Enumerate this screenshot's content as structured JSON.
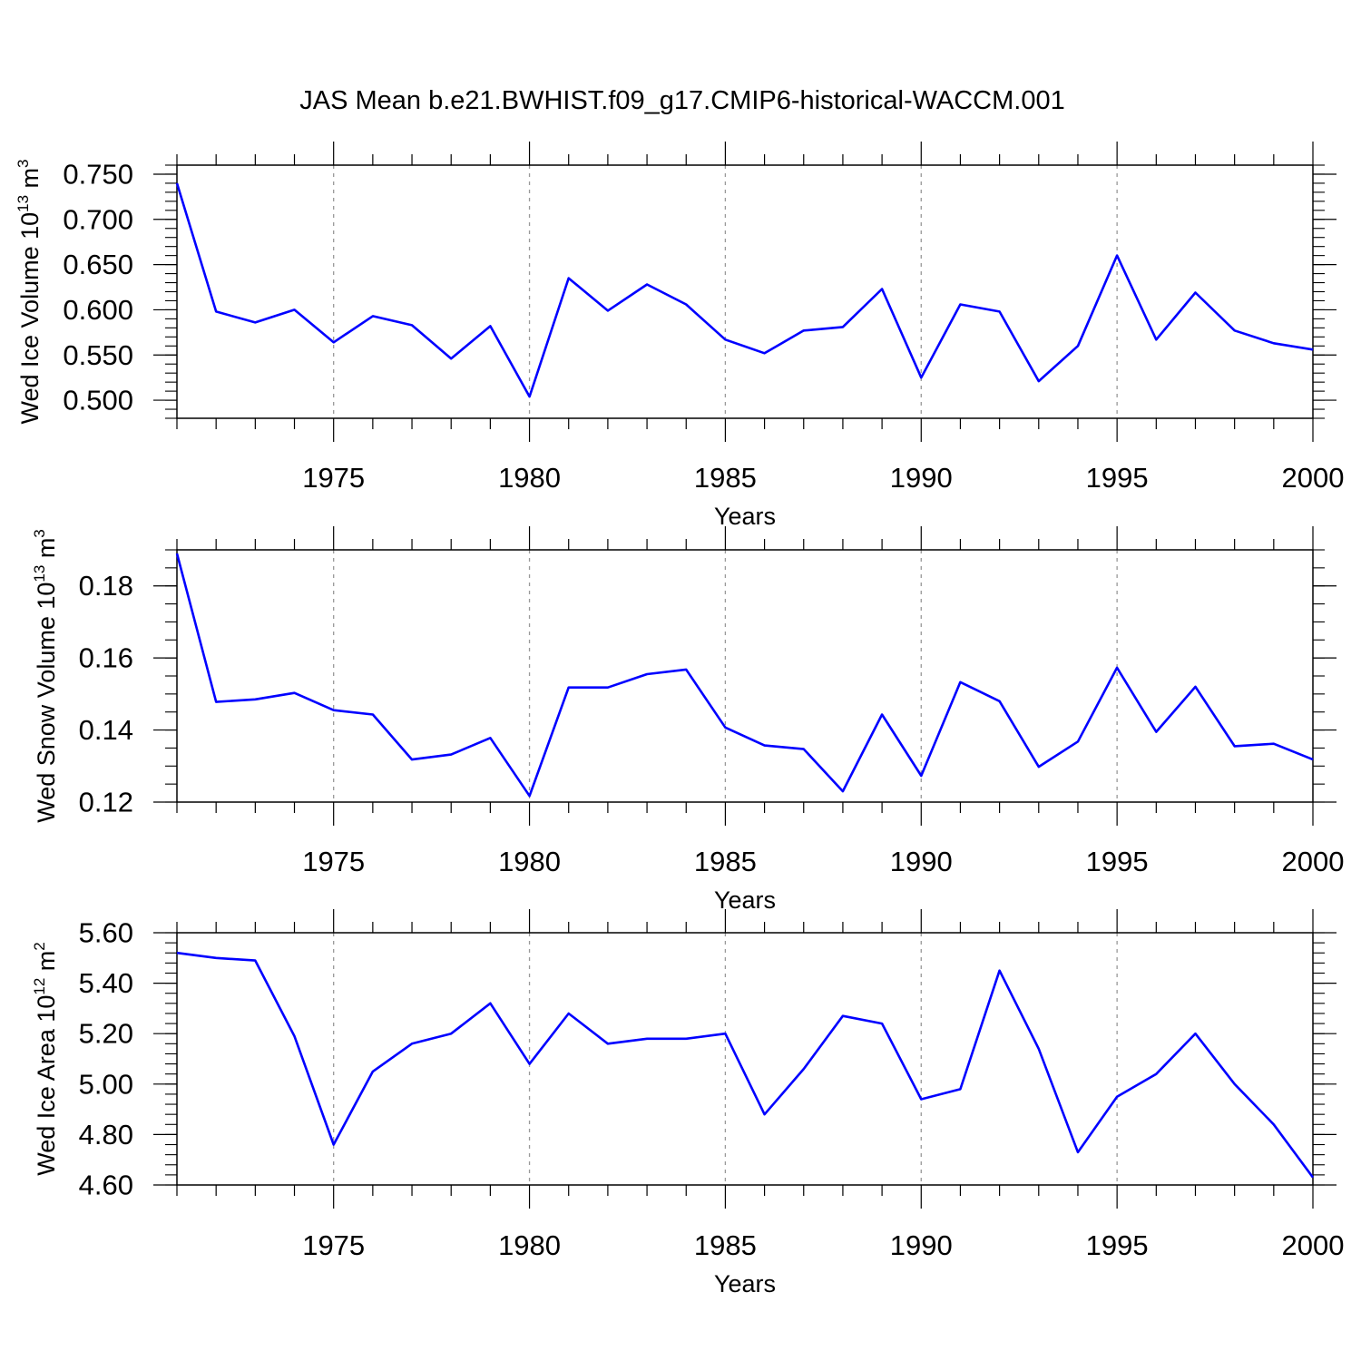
{
  "title": "JAS Mean b.e21.BWHIST.f09_g17.CMIP6-historical-WACCM.001",
  "chart_data": [
    {
      "type": "line",
      "title": "JAS Mean b.e21.BWHIST.f09_g17.CMIP6-historical-WACCM.001",
      "xlabel": "Years",
      "ylabel": {
        "main": "Wed Ice Volume 10",
        "sup1": "13",
        "mid": " m",
        "sup2": "3"
      },
      "xlim": [
        1971,
        2000
      ],
      "ylim": [
        0.48,
        0.76
      ],
      "yticks": [
        0.5,
        0.55,
        0.6,
        0.65,
        0.7,
        0.75
      ],
      "ytick_labels": [
        "0.500",
        "0.550",
        "0.600",
        "0.650",
        "0.700",
        "0.750"
      ],
      "ytick_minor_step": 0.01,
      "xticks": [
        1975,
        1980,
        1985,
        1990,
        1995,
        2000
      ],
      "xtick_labels": [
        "1975",
        "1980",
        "1985",
        "1990",
        "1995",
        "2000"
      ],
      "grid": "dashed vertical at major x ticks",
      "series": [
        {
          "name": "Wed Ice Volume",
          "color": "#0000ff",
          "x": [
            1971,
            1972,
            1973,
            1974,
            1975,
            1976,
            1977,
            1978,
            1979,
            1980,
            1981,
            1982,
            1983,
            1984,
            1985,
            1986,
            1987,
            1988,
            1989,
            1990,
            1991,
            1992,
            1993,
            1994,
            1995,
            1996,
            1997,
            1998,
            1999,
            2000
          ],
          "values": [
            0.74,
            0.598,
            0.586,
            0.6,
            0.564,
            0.593,
            0.583,
            0.546,
            0.582,
            0.504,
            0.635,
            0.599,
            0.628,
            0.606,
            0.567,
            0.552,
            0.577,
            0.581,
            0.623,
            0.525,
            0.606,
            0.598,
            0.521,
            0.56,
            0.66,
            0.567,
            0.619,
            0.577,
            0.563,
            0.556
          ]
        }
      ]
    },
    {
      "type": "line",
      "title": "",
      "xlabel": "Years",
      "ylabel": {
        "main": "Wed Snow Volume 10",
        "sup1": "13",
        "mid": " m",
        "sup2": "3"
      },
      "xlim": [
        1971,
        2000
      ],
      "ylim": [
        0.12,
        0.19
      ],
      "yticks": [
        0.12,
        0.14,
        0.16,
        0.18
      ],
      "ytick_labels": [
        "0.12",
        "0.14",
        "0.16",
        "0.18"
      ],
      "ytick_minor_step": 0.005,
      "xticks": [
        1975,
        1980,
        1985,
        1990,
        1995,
        2000
      ],
      "xtick_labels": [
        "1975",
        "1980",
        "1985",
        "1990",
        "1995",
        "2000"
      ],
      "grid": "dashed vertical at major x ticks",
      "series": [
        {
          "name": "Wed Snow Volume",
          "color": "#0000ff",
          "x": [
            1971,
            1972,
            1973,
            1974,
            1975,
            1976,
            1977,
            1978,
            1979,
            1980,
            1981,
            1982,
            1983,
            1984,
            1985,
            1986,
            1987,
            1988,
            1989,
            1990,
            1991,
            1992,
            1993,
            1994,
            1995,
            1996,
            1997,
            1998,
            1999,
            2000
          ],
          "values": [
            0.189,
            0.1478,
            0.1485,
            0.1503,
            0.1455,
            0.1443,
            0.1318,
            0.1332,
            0.1378,
            0.1217,
            0.1518,
            0.1518,
            0.1555,
            0.1568,
            0.1407,
            0.1357,
            0.1347,
            0.123,
            0.1443,
            0.1273,
            0.1533,
            0.148,
            0.1298,
            0.1368,
            0.1573,
            0.1395,
            0.152,
            0.1355,
            0.1362,
            0.1318
          ]
        }
      ]
    },
    {
      "type": "line",
      "title": "",
      "xlabel": "Years",
      "ylabel": {
        "main": "Wed Ice Area 10",
        "sup1": "12",
        "mid": " m",
        "sup2": "2"
      },
      "xlim": [
        1971,
        2000
      ],
      "ylim": [
        4.6,
        5.6
      ],
      "yticks": [
        4.6,
        4.8,
        5.0,
        5.2,
        5.4,
        5.6
      ],
      "ytick_labels": [
        "4.60",
        "4.80",
        "5.00",
        "5.20",
        "5.40",
        "5.60"
      ],
      "ytick_minor_step": 0.04,
      "xticks": [
        1975,
        1980,
        1985,
        1990,
        1995,
        2000
      ],
      "xtick_labels": [
        "1975",
        "1980",
        "1985",
        "1990",
        "1995",
        "2000"
      ],
      "grid": "dashed vertical at major x ticks",
      "series": [
        {
          "name": "Wed Ice Area",
          "color": "#0000ff",
          "x": [
            1971,
            1972,
            1973,
            1974,
            1975,
            1976,
            1977,
            1978,
            1979,
            1980,
            1981,
            1982,
            1983,
            1984,
            1985,
            1986,
            1987,
            1988,
            1989,
            1990,
            1991,
            1992,
            1993,
            1994,
            1995,
            1996,
            1997,
            1998,
            1999,
            2000
          ],
          "values": [
            5.52,
            5.5,
            5.49,
            5.19,
            4.76,
            5.05,
            5.16,
            5.2,
            5.32,
            5.08,
            5.28,
            5.16,
            5.18,
            5.18,
            5.2,
            4.88,
            5.06,
            5.27,
            5.24,
            4.94,
            4.98,
            5.45,
            5.14,
            4.73,
            4.95,
            5.04,
            5.2,
            5.0,
            4.84,
            4.63
          ]
        }
      ]
    }
  ]
}
